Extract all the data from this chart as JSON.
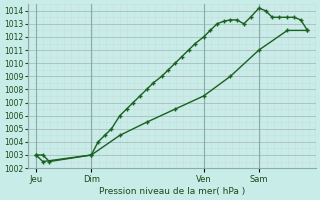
{
  "title": "Pression niveau de la mer( hPa )",
  "bg_color": "#c8ece8",
  "grid_major_color": "#aabbbb",
  "grid_minor_color": "#ccdddd",
  "line_color": "#1a6020",
  "ylim": [
    1002,
    1014.5
  ],
  "yticks_major": [
    1002,
    1003,
    1004,
    1005,
    1006,
    1007,
    1008,
    1009,
    1010,
    1011,
    1012,
    1013,
    1014
  ],
  "xtick_labels": [
    "Jeu",
    "Dim",
    "Ven",
    "Sam"
  ],
  "xtick_positions": [
    0,
    0.33,
    1.0,
    1.33
  ],
  "xlim": [
    -0.05,
    1.67
  ],
  "line1_x": [
    0.0,
    0.04,
    0.08,
    0.33,
    0.37,
    0.41,
    0.45,
    0.5,
    0.54,
    0.58,
    0.62,
    0.66,
    0.7,
    0.75,
    0.79,
    0.83,
    0.87,
    0.91,
    0.95,
    1.0,
    1.04,
    1.08,
    1.12,
    1.16,
    1.2,
    1.24,
    1.28,
    1.33,
    1.37,
    1.41,
    1.45,
    1.5,
    1.54,
    1.58,
    1.62
  ],
  "line1_y": [
    1003.0,
    1003.0,
    1002.5,
    1003.0,
    1004.0,
    1004.5,
    1005.0,
    1006.0,
    1006.5,
    1007.0,
    1007.5,
    1008.0,
    1008.5,
    1009.0,
    1009.5,
    1010.0,
    1010.5,
    1011.0,
    1011.5,
    1012.0,
    1012.5,
    1013.0,
    1013.2,
    1013.3,
    1013.3,
    1013.0,
    1013.5,
    1014.2,
    1014.0,
    1013.5,
    1013.5,
    1013.5,
    1013.5,
    1013.3,
    1012.5
  ],
  "line2_x": [
    0.0,
    0.04,
    0.33,
    0.5,
    0.66,
    0.83,
    1.0,
    1.16,
    1.33,
    1.5,
    1.62
  ],
  "line2_y": [
    1003.0,
    1002.5,
    1003.0,
    1004.5,
    1005.5,
    1006.5,
    1007.5,
    1009.0,
    1011.0,
    1012.5,
    1012.5
  ],
  "vline_positions": [
    0.0,
    0.33,
    1.0,
    1.33
  ],
  "marker_size": 3.5,
  "linewidth": 1.0,
  "minor_per_major": 4
}
